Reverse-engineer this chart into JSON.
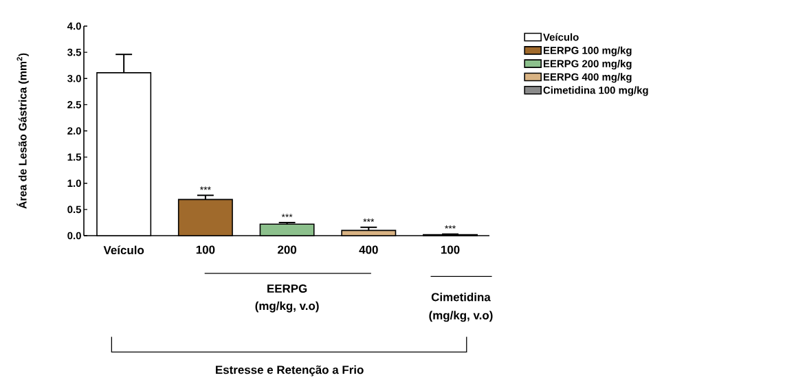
{
  "chart_data": {
    "type": "bar",
    "ylabel": "Área de Lesão Gástrica (mm$^{2}$)",
    "categories": [
      "Veículo",
      "100",
      "200",
      "400",
      "100"
    ],
    "series": [
      {
        "name": "Veículo",
        "color": "#ffffff",
        "values": [
          3.11,
          null,
          null,
          null,
          null
        ],
        "errors": [
          0.35,
          null,
          null,
          null,
          null
        ],
        "value_labels": [
          null,
          null,
          null,
          null,
          null
        ]
      },
      {
        "name": "EERPG 100 mg/kg",
        "color": "#a06a2c",
        "values": [
          null,
          0.69,
          null,
          null,
          null
        ],
        "errors": [
          null,
          0.08,
          null,
          null,
          null
        ],
        "value_labels": [
          null,
          "***",
          null,
          null,
          null
        ]
      },
      {
        "name": "EERPG 200 mg/kg",
        "color": "#8cc08c",
        "values": [
          null,
          null,
          0.22,
          null,
          null
        ],
        "errors": [
          null,
          null,
          0.03,
          null,
          null
        ],
        "value_labels": [
          null,
          null,
          "***",
          null,
          null
        ]
      },
      {
        "name": "EERPG 400 mg/kg",
        "color": "#d9b383",
        "values": [
          null,
          null,
          null,
          0.1,
          null
        ],
        "errors": [
          null,
          null,
          null,
          0.06,
          null
        ],
        "value_labels": [
          null,
          null,
          null,
          "***",
          null
        ]
      },
      {
        "name": "Cimetidina 100 mg/kg",
        "color": "#8a8a8a",
        "values": [
          null,
          null,
          null,
          null,
          0.02
        ],
        "errors": [
          null,
          null,
          null,
          null,
          0.01
        ],
        "value_labels": [
          null,
          null,
          null,
          null,
          "***"
        ]
      }
    ],
    "ylim": [
      0,
      4
    ],
    "yticks": [
      {
        "value": 0,
        "label": "0.0"
      },
      {
        "value": 0.5,
        "label": "0.5"
      },
      {
        "value": 1,
        "label": "1.0"
      },
      {
        "value": 1.5,
        "label": "1.5"
      },
      {
        "value": 2,
        "label": "2.0"
      },
      {
        "value": 2.5,
        "label": "2.5"
      },
      {
        "value": 3,
        "label": "3.0"
      },
      {
        "value": 3.5,
        "label": "3.5"
      },
      {
        "value": 4,
        "label": "4.0"
      }
    ],
    "legend": "right",
    "annotations": [
      "EERPG",
      "(mg/kg, v.o)",
      "Cimetidina",
      "(mg/kg, v.o)",
      "Estresse e Retenção a Frio"
    ]
  }
}
